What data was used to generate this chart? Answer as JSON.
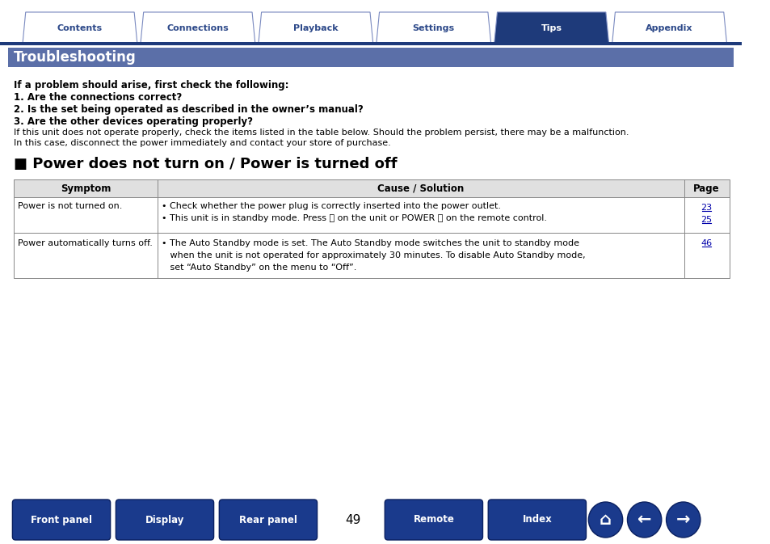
{
  "bg_color": "#ffffff",
  "tab_labels": [
    "Contents",
    "Connections",
    "Playback",
    "Settings",
    "Tips",
    "Appendix"
  ],
  "active_tab": 4,
  "tab_color_inactive": "#ffffff",
  "tab_color_active": "#1e3a7a",
  "tab_text_inactive": "#2e4a8a",
  "tab_text_active": "#ffffff",
  "tab_border_color": "#7a8ac0",
  "nav_bar_color": "#1e3a7a",
  "header_bar_color": "#5b6fa8",
  "header_text": "Troubleshooting",
  "header_text_color": "#ffffff",
  "section_title": "■ Power does not turn on / Power is turned off",
  "section_title_color": "#000000",
  "intro_bold1": "If a problem should arise, first check the following:",
  "intro_bold2": "1. Are the connections correct?",
  "intro_bold3": "2. Is the set being operated as described in the owner’s manual?",
  "intro_bold4": "3. Are the other devices operating properly?",
  "intro_normal1": "If this unit does not operate properly, check the items listed in the table below. Should the problem persist, there may be a malfunction.",
  "intro_normal2": "In this case, disconnect the power immediately and contact your store of purchase.",
  "table_header_bg": "#e0e0e0",
  "table_border_color": "#888888",
  "col_headers": [
    "Symptom",
    "Cause / Solution",
    "Page"
  ],
  "row1_symptom": "Power is not turned on.",
  "row1_solutions": [
    "• Check whether the power plug is correctly inserted into the power outlet.",
    "• This unit is in standby mode. Press ⏻ on the unit or POWER ⏻ on the remote control."
  ],
  "row1_pages": [
    "23",
    "25"
  ],
  "row2_symptom": "Power automatically turns off.",
  "row2_solutions": [
    "• The Auto Standby mode is set. The Auto Standby mode switches the unit to standby mode",
    "   when the unit is not operated for approximately 30 minutes. To disable Auto Standby mode,",
    "   set “Auto Standby” on the menu to “Off”."
  ],
  "row2_pages": [
    "46"
  ],
  "bottom_buttons": [
    "Front panel",
    "Display",
    "Rear panel",
    "Remote",
    "Index"
  ],
  "page_number": "49",
  "button_color_main": "#1a3a8c",
  "button_text_color": "#ffffff"
}
